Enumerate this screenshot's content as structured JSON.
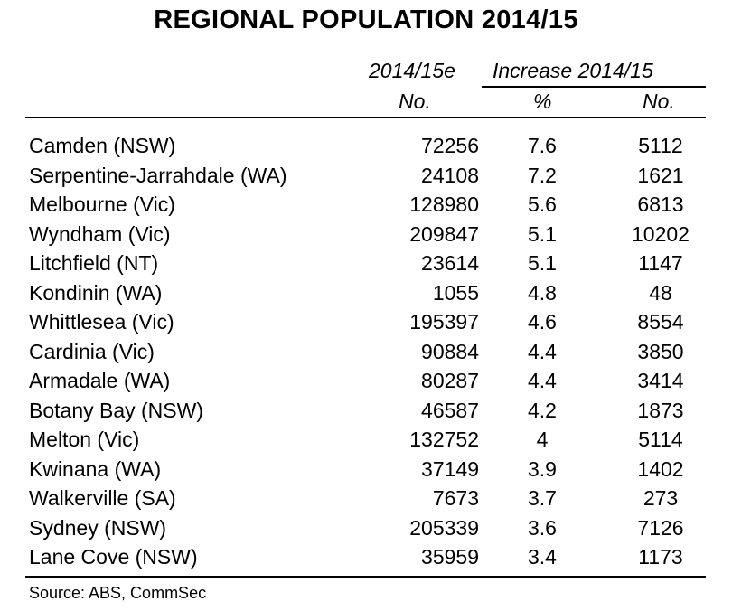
{
  "chart_data": {
    "type": "table",
    "title": "REGIONAL POPULATION 2014/15",
    "header": {
      "col1_top": "2014/15e",
      "col1_unit": "No.",
      "group_label": "Increase 2014/15",
      "col2_unit": "%",
      "col3_unit": "No."
    },
    "rows": [
      {
        "region": "Camden (NSW)",
        "pop": "72256",
        "pct": "7.6",
        "num": "5112"
      },
      {
        "region": "Serpentine-Jarrahdale (WA)",
        "pop": "24108",
        "pct": "7.2",
        "num": "1621"
      },
      {
        "region": "Melbourne (Vic)",
        "pop": "128980",
        "pct": "5.6",
        "num": "6813"
      },
      {
        "region": "Wyndham (Vic)",
        "pop": "209847",
        "pct": "5.1",
        "num": "10202"
      },
      {
        "region": "Litchfield (NT)",
        "pop": "23614",
        "pct": "5.1",
        "num": "1147"
      },
      {
        "region": "Kondinin (WA)",
        "pop": "1055",
        "pct": "4.8",
        "num": "48"
      },
      {
        "region": "Whittlesea (Vic)",
        "pop": "195397",
        "pct": "4.6",
        "num": "8554"
      },
      {
        "region": "Cardinia (Vic)",
        "pop": "90884",
        "pct": "4.4",
        "num": "3850"
      },
      {
        "region": "Armadale (WA)",
        "pop": "80287",
        "pct": "4.4",
        "num": "3414"
      },
      {
        "region": "Botany Bay (NSW)",
        "pop": "46587",
        "pct": "4.2",
        "num": "1873"
      },
      {
        "region": "Melton (Vic)",
        "pop": "132752",
        "pct": "4",
        "num": "5114"
      },
      {
        "region": "Kwinana (WA)",
        "pop": "37149",
        "pct": "3.9",
        "num": "1402"
      },
      {
        "region": "Walkerville (SA)",
        "pop": "7673",
        "pct": "3.7",
        "num": "273"
      },
      {
        "region": "Sydney (NSW)",
        "pop": "205339",
        "pct": "3.6",
        "num": "7126"
      },
      {
        "region": "Lane Cove (NSW)",
        "pop": "35959",
        "pct": "3.4",
        "num": "1173"
      }
    ],
    "source": "Source: ABS, CommSec"
  }
}
